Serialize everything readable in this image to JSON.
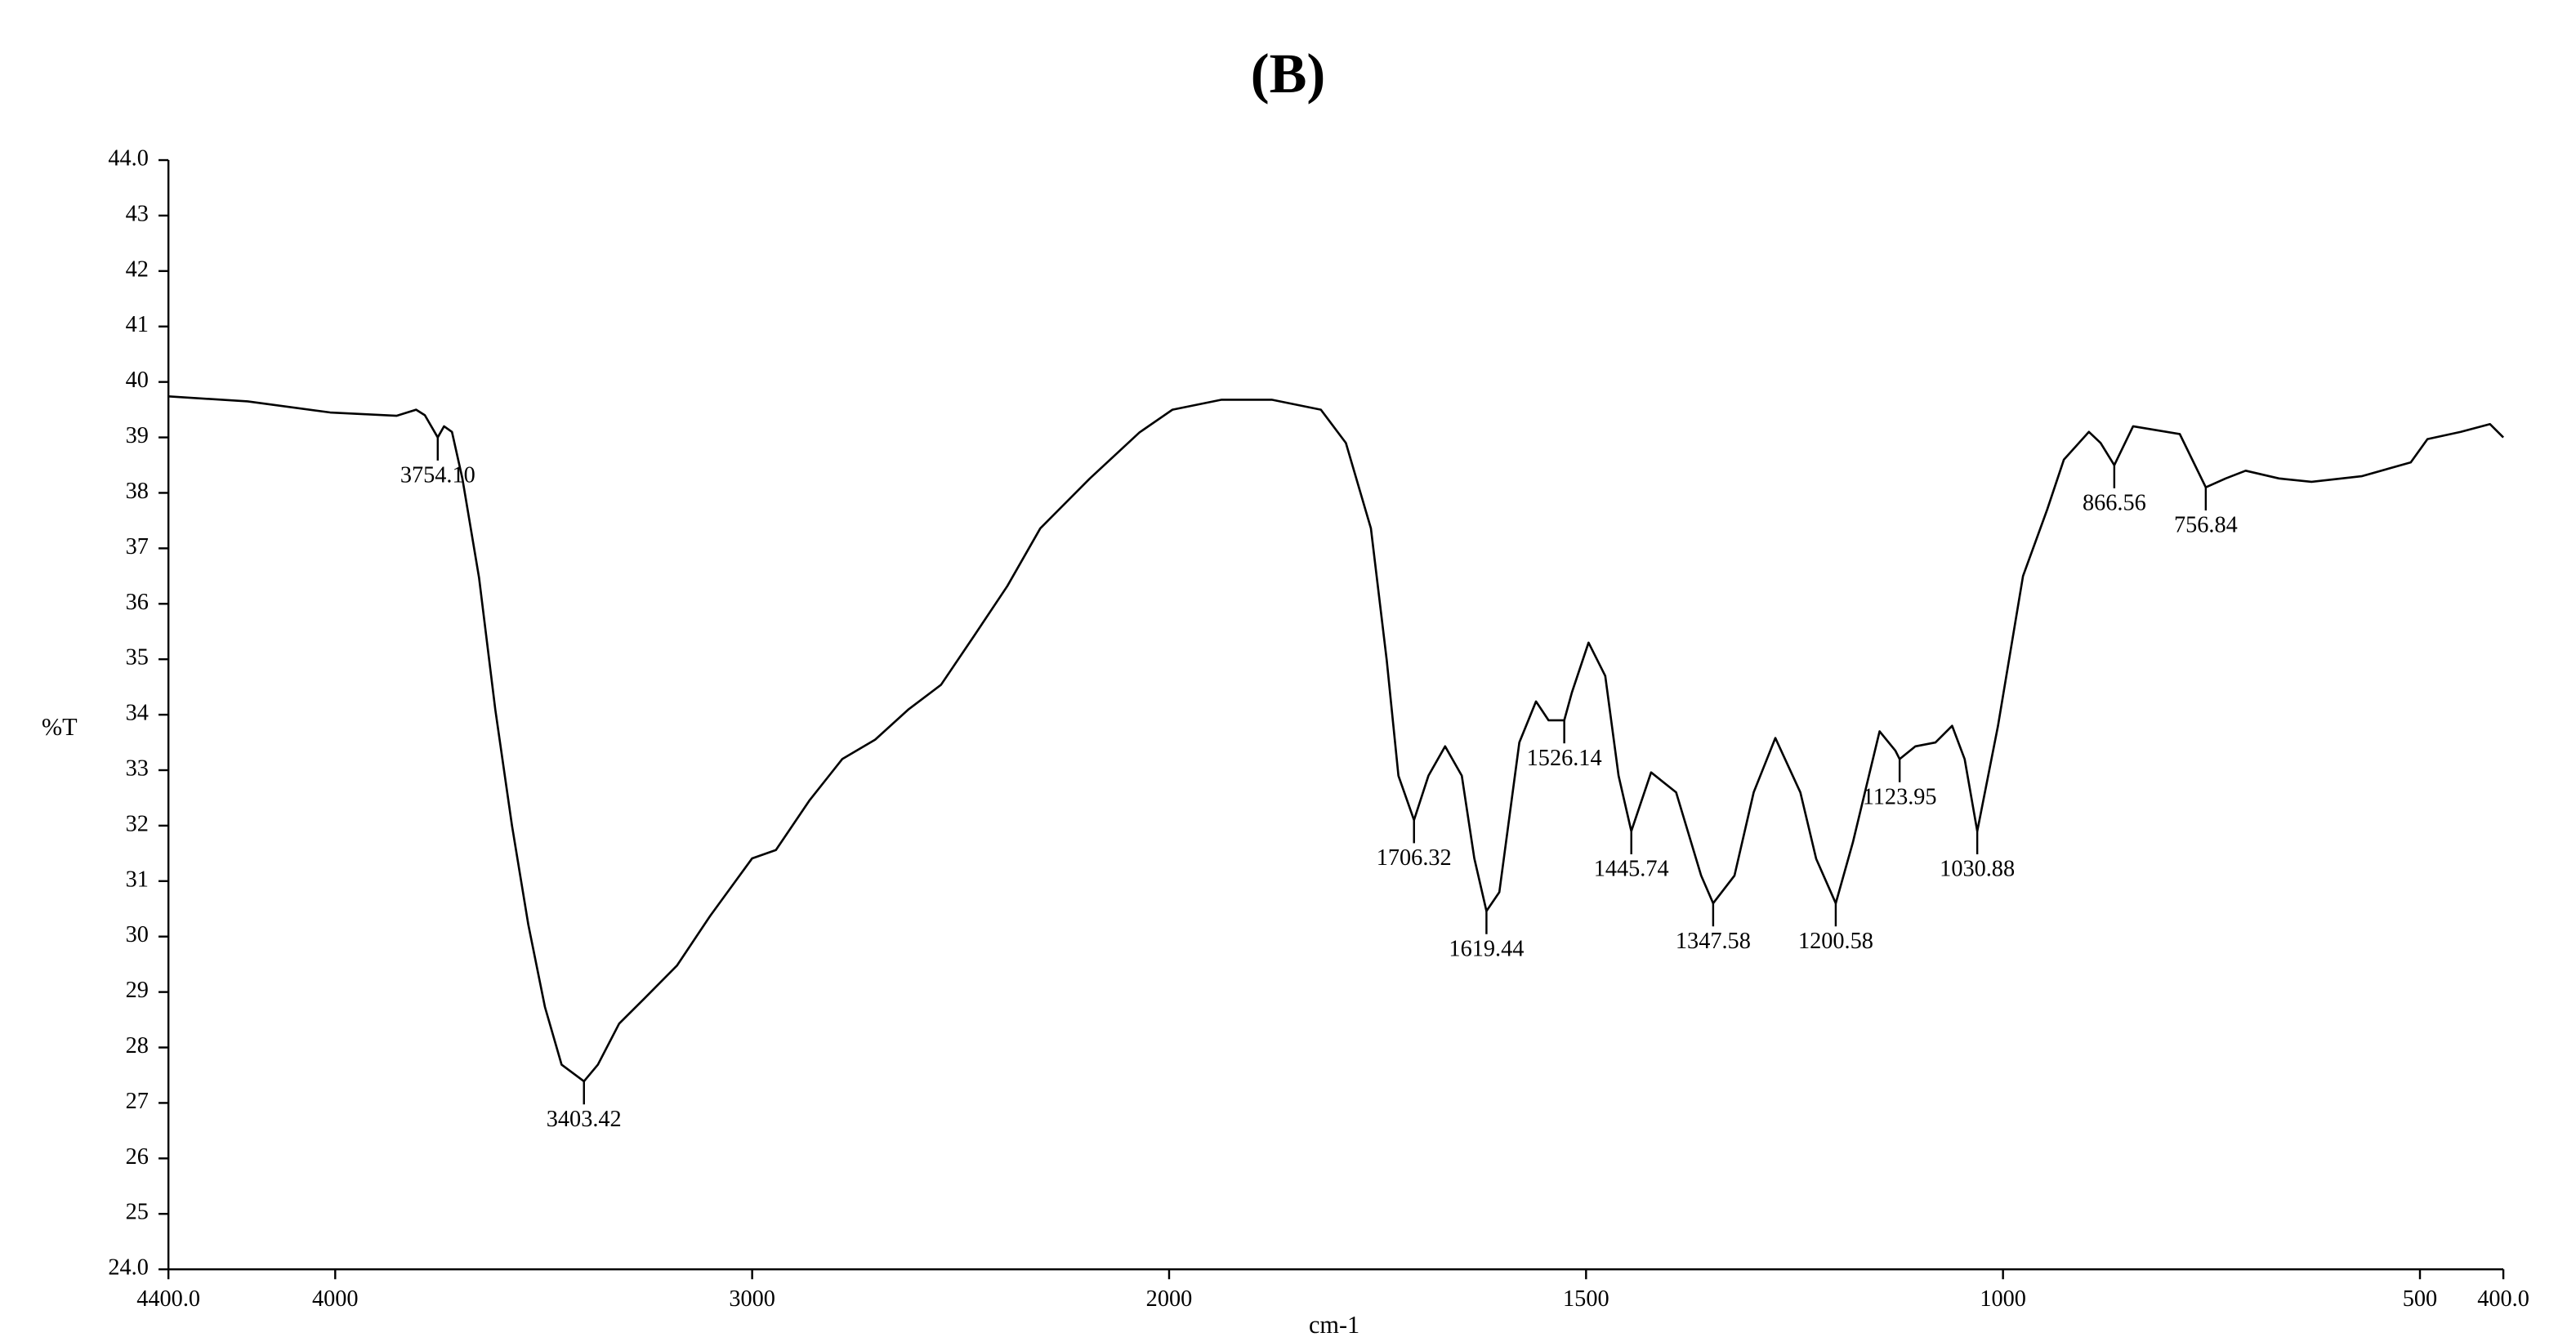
{
  "chart_data": {
    "type": "line",
    "title": "(B)",
    "xlabel": "cm-1",
    "ylabel": "%T",
    "x_reversed": true,
    "x_scale_change_at": 2000,
    "color": "#000000",
    "xlim": [
      4400,
      400
    ],
    "xticks": [
      {
        "value": 4400,
        "label": "4400.0"
      },
      4000,
      3000,
      2000,
      1500,
      1000,
      500,
      {
        "value": 400,
        "label": "400.0"
      }
    ],
    "ylim": [
      24,
      44
    ],
    "yticks": [
      {
        "value": 24,
        "label": "24.0"
      },
      25,
      26,
      27,
      28,
      29,
      30,
      31,
      32,
      33,
      34,
      35,
      36,
      37,
      38,
      39,
      40,
      41,
      42,
      43,
      {
        "value": 44,
        "label": "44.0"
      }
    ],
    "x": [
      4400,
      4210,
      4012,
      3853,
      3806,
      3785,
      3754.1,
      3739,
      3720,
      3695,
      3655,
      3616,
      3576,
      3537,
      3497,
      3457,
      3403.42,
      3370,
      3319,
      3259,
      3180,
      3101,
      3000,
      2943,
      2863,
      2784,
      2705,
      2626,
      2547,
      2467,
      2388,
      2309,
      2190,
      2071,
      1996,
      1937,
      1877,
      1818,
      1788,
      1758,
      1739,
      1725,
      1706.32,
      1689,
      1669,
      1649,
      1634,
      1619.44,
      1604,
      1580,
      1560,
      1545,
      1526.14,
      1517,
      1497,
      1477,
      1461,
      1445.74,
      1422,
      1392,
      1362,
      1347.58,
      1322,
      1299,
      1273,
      1243,
      1224,
      1200.58,
      1180,
      1148,
      1129,
      1123.95,
      1105,
      1081,
      1061,
      1046,
      1030.88,
      1006,
      976,
      947,
      927,
      897,
      883,
      866.56,
      844,
      788,
      756.84,
      733,
      709,
      669,
      630,
      570,
      511,
      491,
      451,
      416,
      400
    ],
    "values": [
      39.74,
      39.65,
      39.45,
      39.39,
      39.5,
      39.4,
      39.0,
      39.2,
      39.1,
      38.26,
      36.47,
      34.09,
      32.0,
      30.22,
      28.73,
      27.69,
      27.39,
      27.69,
      28.43,
      28.88,
      29.48,
      30.37,
      31.41,
      31.56,
      32.45,
      33.2,
      33.55,
      34.09,
      34.54,
      35.43,
      36.32,
      37.36,
      38.26,
      39.09,
      39.5,
      39.68,
      39.68,
      39.5,
      38.9,
      37.36,
      34.98,
      32.9,
      32.1,
      32.9,
      33.43,
      32.9,
      31.41,
      30.46,
      30.8,
      33.5,
      34.24,
      33.9,
      33.9,
      34.4,
      35.3,
      34.7,
      32.9,
      31.9,
      32.96,
      32.6,
      31.1,
      30.6,
      31.1,
      32.6,
      33.58,
      32.6,
      31.4,
      30.6,
      31.7,
      33.7,
      33.35,
      33.2,
      33.43,
      33.5,
      33.8,
      33.2,
      31.9,
      33.8,
      36.5,
      37.7,
      38.6,
      39.1,
      38.9,
      38.5,
      39.2,
      39.06,
      38.1,
      38.26,
      38.4,
      38.26,
      38.2,
      38.3,
      38.55,
      38.97,
      39.1,
      39.24,
      39.0
    ],
    "peaks": [
      {
        "value": 3754.1,
        "label": "3754.10"
      },
      {
        "value": 3403.42,
        "label": "3403.42"
      },
      {
        "value": 1706.32,
        "label": "1706.32"
      },
      {
        "value": 1619.44,
        "label": "1619.44"
      },
      {
        "value": 1526.14,
        "label": "1526.14"
      },
      {
        "value": 1445.74,
        "label": "1445.74"
      },
      {
        "value": 1347.58,
        "label": "1347.58"
      },
      {
        "value": 1200.58,
        "label": "1200.58"
      },
      {
        "value": 1123.95,
        "label": "1123.95"
      },
      {
        "value": 1030.88,
        "label": "1030.88"
      },
      {
        "value": 866.56,
        "label": "866.56"
      },
      {
        "value": 756.84,
        "label": "756.84"
      }
    ]
  }
}
